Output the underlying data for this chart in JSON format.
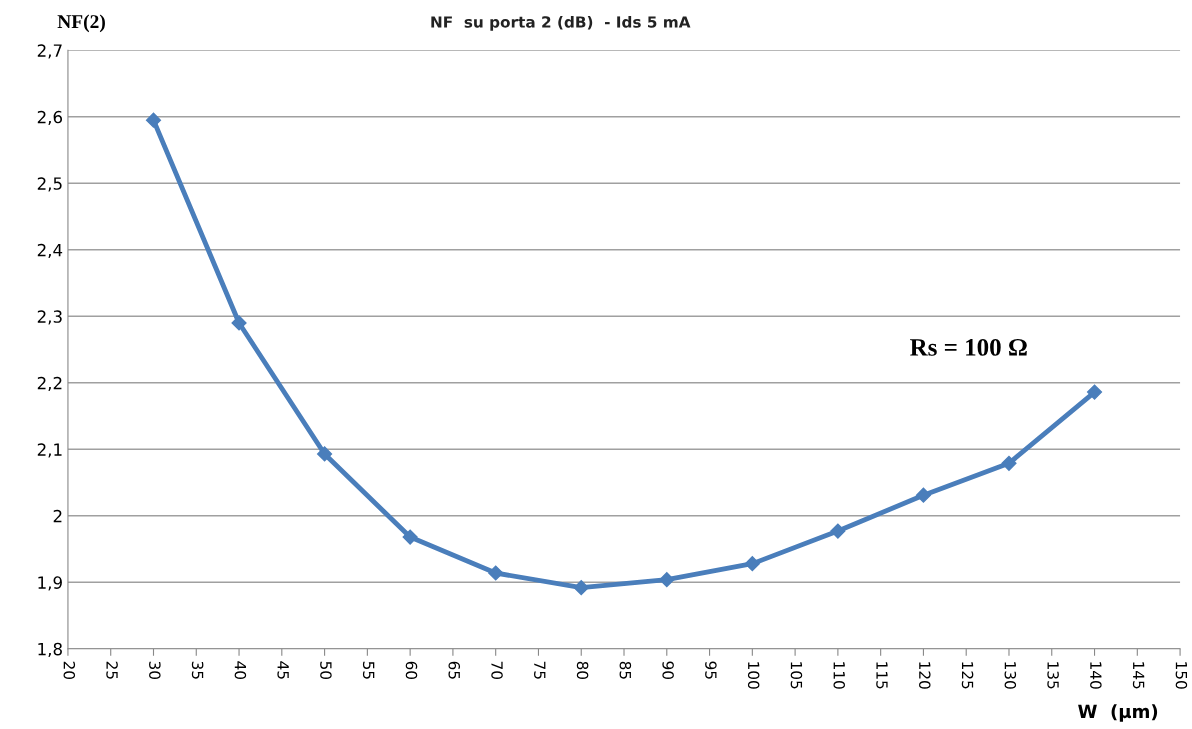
{
  "chart_data": {
    "type": "line",
    "title": "NF  su porta 2 (dB)  - Ids 5 mA",
    "ylabel": "NF(2)",
    "xlabel": "W  (µm)",
    "annotations": [
      "Rs = 100 Ω"
    ],
    "x": [
      30,
      40,
      50,
      60,
      70,
      80,
      90,
      100,
      110,
      120,
      130,
      140
    ],
    "series": [
      {
        "color": "#4a7ebb",
        "values": [
          2.595,
          2.29,
          2.093,
          1.968,
          1.914,
          1.892,
          1.904,
          1.928,
          1.977,
          2.031,
          2.079,
          2.186
        ]
      }
    ],
    "xlim": [
      20,
      150
    ],
    "xticks": [
      20,
      25,
      30,
      35,
      40,
      45,
      50,
      55,
      60,
      65,
      70,
      75,
      80,
      85,
      90,
      95,
      100,
      105,
      110,
      115,
      120,
      125,
      130,
      135,
      140,
      145,
      150
    ],
    "ylim": [
      1.8,
      2.7
    ],
    "yticks": [
      {
        "value": 1.8,
        "label": "1,8"
      },
      {
        "value": 1.9,
        "label": "1,9"
      },
      {
        "value": 2,
        "label": "2"
      },
      {
        "value": 2.1,
        "label": "2,1"
      },
      {
        "value": 2.2,
        "label": "2,2"
      },
      {
        "value": 2.3,
        "label": "2,3"
      },
      {
        "value": 2.4,
        "label": "2,4"
      },
      {
        "value": 2.5,
        "label": "2,5"
      },
      {
        "value": 2.6,
        "label": "2,6"
      },
      {
        "value": 2.7,
        "label": "2,7"
      }
    ],
    "grid": "y",
    "marker": "diamond",
    "line_style": "solid"
  }
}
